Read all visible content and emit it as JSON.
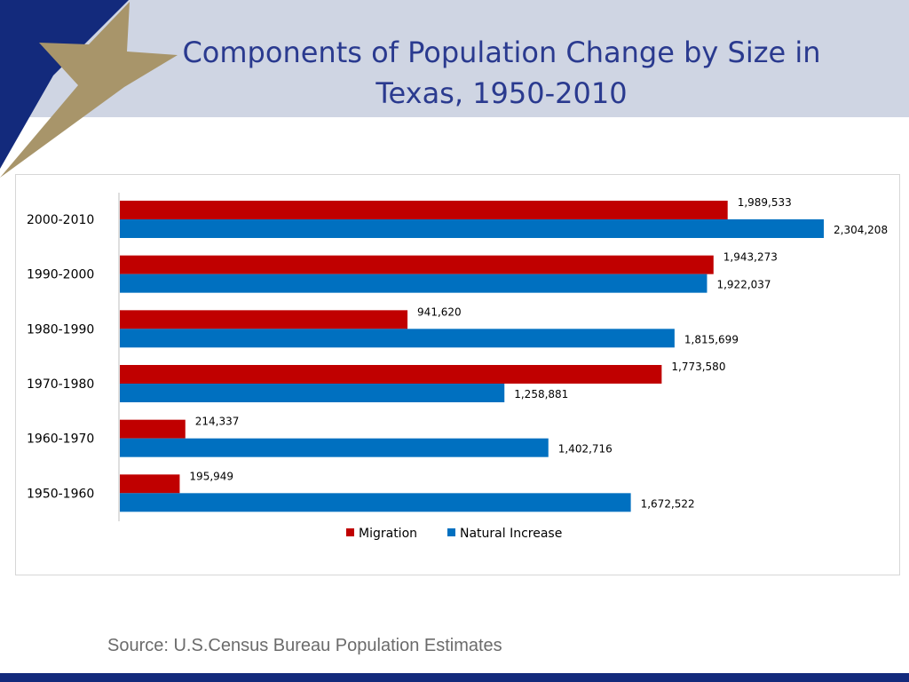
{
  "title": "Components of Population Change by Size in Texas, 1950-2010",
  "source": "Source: U.S.Census Bureau Population Estimates",
  "colors": {
    "migration": "#c00000",
    "natural_increase": "#0070c0",
    "header_bg": "#cfd5e3",
    "title": "#2a3a8f",
    "navy": "#132a7c",
    "star_gold": "#a8956a"
  },
  "chart_data": {
    "type": "bar",
    "orientation": "horizontal",
    "categories": [
      "2000-2010",
      "1990-2000",
      "1980-1990",
      "1970-1980",
      "1960-1970",
      "1950-1960"
    ],
    "series": [
      {
        "name": "Migration",
        "values": [
          1989533,
          1943273,
          941620,
          1773580,
          214337,
          195949
        ],
        "labels": [
          "1,989,533",
          "1,943,273",
          "941,620",
          "1,773,580",
          "214,337",
          "195,949"
        ]
      },
      {
        "name": "Natural Increase",
        "values": [
          2304208,
          1922037,
          1815699,
          1258881,
          1402716,
          1672522
        ],
        "labels": [
          "2,304,208",
          "1,922,037",
          "1,815,699",
          "1,258,881",
          "1,402,716",
          "1,672,522"
        ]
      }
    ],
    "xlim": [
      0,
      2304208
    ],
    "legend_position": "bottom",
    "grid": false
  }
}
